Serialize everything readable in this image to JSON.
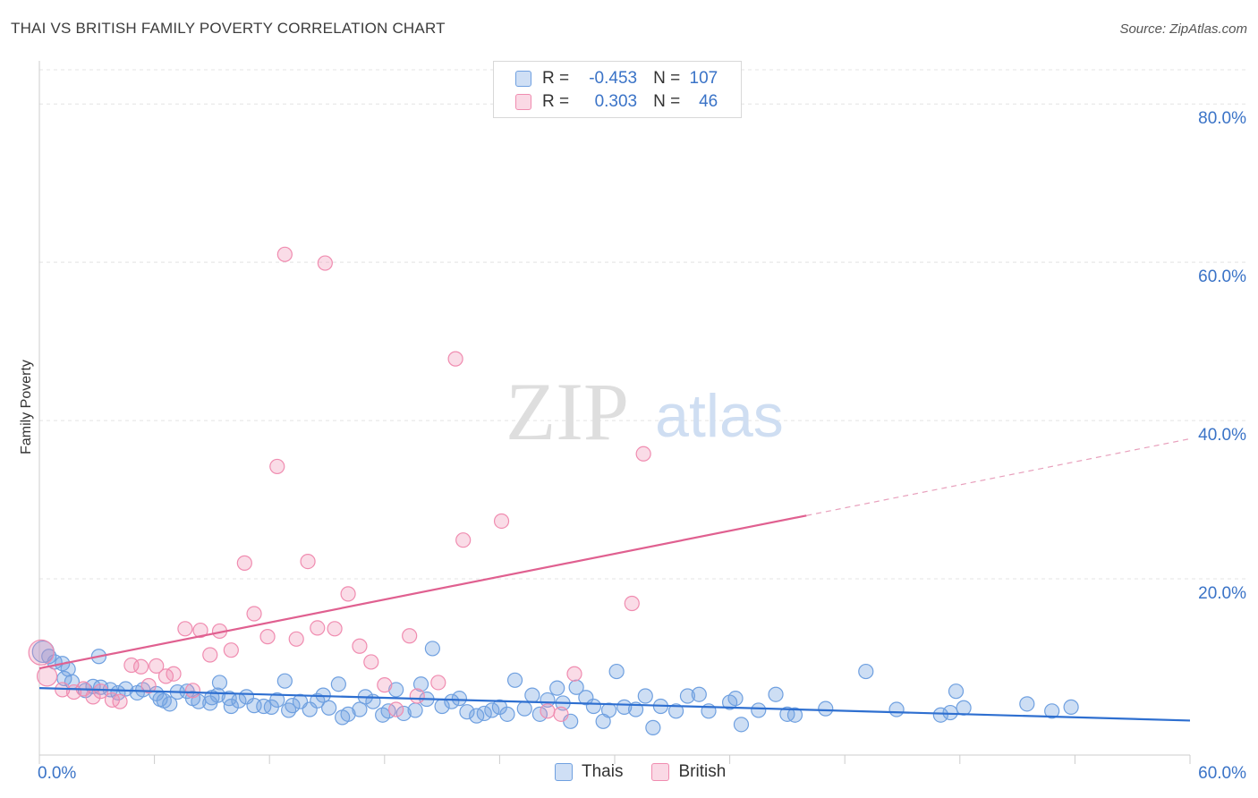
{
  "header": {
    "title": "THAI VS BRITISH FAMILY POVERTY CORRELATION CHART",
    "source": "Source: ZipAtlas.com"
  },
  "watermark": {
    "zip": "ZIP",
    "atlas": "atlas"
  },
  "legend": {
    "rows": [
      {
        "r_label": "R =",
        "r_value": "-0.453",
        "n_label": "N =",
        "n_value": "107",
        "color": "#6fa0e0"
      },
      {
        "r_label": "R =",
        "r_value": "0.303",
        "n_label": "N =",
        "n_value": "46",
        "color": "#f08cb0"
      }
    ]
  },
  "chart_data": {
    "type": "scatter",
    "title": "THAI VS BRITISH FAMILY POVERTY CORRELATION CHART",
    "ylabel": "Family Poverty",
    "xlabel": "",
    "xlim": [
      0,
      60
    ],
    "ylim": [
      0,
      85
    ],
    "x_tick_labels": [
      "0.0%",
      "60.0%"
    ],
    "y_tick_labels": [
      "20.0%",
      "40.0%",
      "60.0%",
      "80.0%"
    ],
    "y_ticks": [
      20,
      40,
      60,
      80
    ],
    "grid": true,
    "legend_position": "top-center",
    "series": [
      {
        "name": "Thais",
        "color": "#6fa0e0",
        "trend": {
          "x": [
            0,
            60
          ],
          "y": [
            6.2,
            2.1
          ]
        },
        "points": [
          [
            0.2,
            10.8
          ],
          [
            0.5,
            10.2
          ],
          [
            0.8,
            9.5
          ],
          [
            1.2,
            9.3
          ],
          [
            1.5,
            8.6
          ],
          [
            1.3,
            7.4
          ],
          [
            1.7,
            7.0
          ],
          [
            3.1,
            10.2
          ],
          [
            2.4,
            5.9
          ],
          [
            2.8,
            6.4
          ],
          [
            3.2,
            6.3
          ],
          [
            3.7,
            6.0
          ],
          [
            4.1,
            5.6
          ],
          [
            4.5,
            6.1
          ],
          [
            5.1,
            5.6
          ],
          [
            5.4,
            6.0
          ],
          [
            6.1,
            5.5
          ],
          [
            6.3,
            4.8
          ],
          [
            6.5,
            4.6
          ],
          [
            7.2,
            5.7
          ],
          [
            7.7,
            5.8
          ],
          [
            8.0,
            4.9
          ],
          [
            8.3,
            4.5
          ],
          [
            8.9,
            4.3
          ],
          [
            9.3,
            5.3
          ],
          [
            9.4,
            6.9
          ],
          [
            9.9,
            4.9
          ],
          [
            10.4,
            4.6
          ],
          [
            10.8,
            5.1
          ],
          [
            11.2,
            4.0
          ],
          [
            11.7,
            3.9
          ],
          [
            12.1,
            3.8
          ],
          [
            12.4,
            4.7
          ],
          [
            12.8,
            7.1
          ],
          [
            13.2,
            4.0
          ],
          [
            13.6,
            4.5
          ],
          [
            14.1,
            3.5
          ],
          [
            14.5,
            4.6
          ],
          [
            14.8,
            5.3
          ],
          [
            15.1,
            3.7
          ],
          [
            15.6,
            6.7
          ],
          [
            15.8,
            2.5
          ],
          [
            16.1,
            2.9
          ],
          [
            16.7,
            3.5
          ],
          [
            17.0,
            5.1
          ],
          [
            17.4,
            4.5
          ],
          [
            17.9,
            2.8
          ],
          [
            18.2,
            3.3
          ],
          [
            18.6,
            6.0
          ],
          [
            19.0,
            3.0
          ],
          [
            19.6,
            3.4
          ],
          [
            19.9,
            6.7
          ],
          [
            20.2,
            4.8
          ],
          [
            20.5,
            11.2
          ],
          [
            21.0,
            3.9
          ],
          [
            21.5,
            4.5
          ],
          [
            21.9,
            4.9
          ],
          [
            22.3,
            3.2
          ],
          [
            22.8,
            2.7
          ],
          [
            23.2,
            3.0
          ],
          [
            23.6,
            3.4
          ],
          [
            24.0,
            3.8
          ],
          [
            24.4,
            2.9
          ],
          [
            24.8,
            7.2
          ],
          [
            25.3,
            3.6
          ],
          [
            25.7,
            5.3
          ],
          [
            26.1,
            2.9
          ],
          [
            26.5,
            4.7
          ],
          [
            27.0,
            6.2
          ],
          [
            27.3,
            4.3
          ],
          [
            27.7,
            2.0
          ],
          [
            28.0,
            6.3
          ],
          [
            28.5,
            5.0
          ],
          [
            28.9,
            3.9
          ],
          [
            29.4,
            2.0
          ],
          [
            29.7,
            3.4
          ],
          [
            30.1,
            8.3
          ],
          [
            30.5,
            3.8
          ],
          [
            31.1,
            3.5
          ],
          [
            31.6,
            5.2
          ],
          [
            32.0,
            1.2
          ],
          [
            32.4,
            3.9
          ],
          [
            33.2,
            3.3
          ],
          [
            33.8,
            5.2
          ],
          [
            34.4,
            5.4
          ],
          [
            34.9,
            3.3
          ],
          [
            36.0,
            4.4
          ],
          [
            36.3,
            4.9
          ],
          [
            36.6,
            1.6
          ],
          [
            37.5,
            3.4
          ],
          [
            38.4,
            5.4
          ],
          [
            39.0,
            2.9
          ],
          [
            39.4,
            2.8
          ],
          [
            43.1,
            8.3
          ],
          [
            44.7,
            3.5
          ],
          [
            47.0,
            2.8
          ],
          [
            47.5,
            3.1
          ],
          [
            47.8,
            5.8
          ],
          [
            48.2,
            3.7
          ],
          [
            51.5,
            4.2
          ],
          [
            53.8,
            3.8
          ],
          [
            52.8,
            3.3
          ],
          [
            41.0,
            3.6
          ],
          [
            13.0,
            3.4
          ],
          [
            9.0,
            5.0
          ],
          [
            6.8,
            4.2
          ],
          [
            10.0,
            3.9
          ]
        ]
      },
      {
        "name": "British",
        "color": "#f08cb0",
        "trend": {
          "x": [
            0,
            40
          ],
          "y": [
            8.7,
            28.0
          ]
        },
        "trend_extension": {
          "x": [
            40,
            60
          ],
          "y": [
            28.0,
            37.7
          ]
        },
        "points": [
          [
            0.1,
            10.7
          ],
          [
            0.4,
            7.7
          ],
          [
            1.2,
            6.0
          ],
          [
            1.8,
            5.7
          ],
          [
            2.3,
            6.1
          ],
          [
            2.8,
            5.1
          ],
          [
            3.2,
            5.8
          ],
          [
            3.8,
            4.7
          ],
          [
            4.2,
            4.5
          ],
          [
            4.8,
            9.1
          ],
          [
            5.3,
            8.9
          ],
          [
            5.7,
            6.5
          ],
          [
            6.1,
            9.0
          ],
          [
            6.6,
            7.7
          ],
          [
            7.0,
            8.0
          ],
          [
            7.6,
            13.7
          ],
          [
            8.0,
            5.9
          ],
          [
            8.4,
            13.5
          ],
          [
            8.9,
            10.4
          ],
          [
            9.4,
            13.4
          ],
          [
            10.0,
            11.0
          ],
          [
            10.7,
            22.0
          ],
          [
            11.2,
            15.6
          ],
          [
            11.9,
            12.7
          ],
          [
            12.4,
            34.2
          ],
          [
            12.8,
            61.0
          ],
          [
            13.4,
            12.4
          ],
          [
            14.0,
            22.2
          ],
          [
            14.5,
            13.8
          ],
          [
            14.9,
            59.9
          ],
          [
            15.4,
            13.7
          ],
          [
            16.1,
            18.1
          ],
          [
            16.7,
            11.5
          ],
          [
            17.3,
            9.5
          ],
          [
            18.0,
            6.6
          ],
          [
            18.6,
            3.5
          ],
          [
            19.3,
            12.8
          ],
          [
            19.7,
            5.2
          ],
          [
            20.8,
            6.9
          ],
          [
            21.7,
            47.8
          ],
          [
            22.1,
            24.9
          ],
          [
            24.1,
            27.3
          ],
          [
            26.5,
            3.3
          ],
          [
            27.2,
            2.9
          ],
          [
            27.9,
            8.0
          ],
          [
            30.9,
            16.9
          ]
        ],
        "special_points": [
          [
            31.5,
            35.8
          ]
        ]
      }
    ]
  },
  "bottom_legend": [
    {
      "label": "Thais",
      "color": "#6fa0e0"
    },
    {
      "label": "British",
      "color": "#f08cb0"
    }
  ]
}
